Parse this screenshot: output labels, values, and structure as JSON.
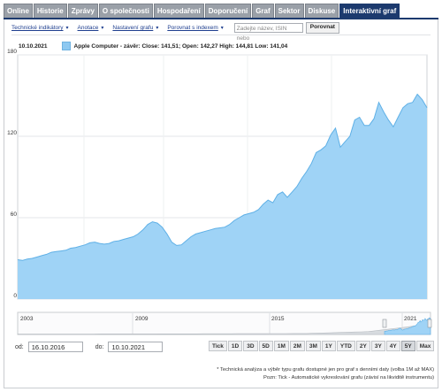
{
  "tabs": [
    "Online",
    "Historie",
    "Zprávy",
    "O společnosti",
    "Hospodaření",
    "Doporučení",
    "Graf",
    "Sektor",
    "Diskuse",
    "Interaktivní graf"
  ],
  "active_tab_index": 9,
  "toolbar": {
    "links": [
      "Technické indikátory",
      "Anotace",
      "Nastavení grafu",
      "Porovnat s indexem"
    ],
    "search_placeholder": "Zadejte název, ISIN nebo",
    "compare_button": "Porovnat"
  },
  "info": {
    "date": "10.10.2021",
    "series_text": "Apple Computer - závěr: Close: 141,51; Open: 142,27 High: 144,81 Low: 141,04"
  },
  "colors": {
    "area_fill": "#9fd3f6",
    "area_line": "#5fb0e6",
    "active_tab": "#1c3a6e",
    "tab": "#9aa0a8"
  },
  "navigator": {
    "year_labels": [
      "2003",
      "2009",
      "2015",
      "2021"
    ]
  },
  "dates": {
    "from_label": "od:",
    "from_value": "16.10.2016",
    "to_label": "do:",
    "to_value": "10.10.2021"
  },
  "range_buttons": [
    "Tick",
    "1D",
    "3D",
    "5D",
    "1M",
    "2M",
    "3M",
    "1Y",
    "YTD",
    "2Y",
    "3Y",
    "4Y",
    "5Y",
    "Max"
  ],
  "selected_range": "5Y",
  "footnotes": [
    "* Technická analýza a výběr typu grafu dostupné jen pro graf s denními daty (volba 1M až MAX)",
    "Pozn: Tick - Automatické vykreslování grafu (závisí na likviditě instrumentu)"
  ],
  "chart_data": {
    "type": "area",
    "series": [
      {
        "name": "Apple Computer",
        "values": [
          29,
          28.5,
          29.5,
          30,
          31,
          32,
          33,
          34.5,
          35,
          35.5,
          36,
          37.5,
          38,
          39,
          40,
          41.5,
          42,
          41,
          40.5,
          41,
          42.5,
          43,
          44,
          45,
          46,
          48,
          51,
          55,
          57,
          56,
          53,
          48,
          42,
          39.5,
          40,
          43,
          46,
          48,
          49,
          50,
          51,
          52,
          52.5,
          53,
          55,
          58,
          60,
          62,
          63,
          64,
          66,
          70,
          73,
          71,
          77,
          79,
          75,
          79,
          83,
          89,
          94,
          100,
          108,
          110,
          113,
          121,
          126,
          112,
          116,
          120,
          132,
          134,
          128,
          128,
          133,
          145,
          138,
          132,
          127,
          134,
          141,
          144,
          145,
          151,
          147,
          141
        ]
      }
    ],
    "x_start": "16.10.2016",
    "x_end": "10.10.2021",
    "yticks": [
      0,
      60,
      120,
      180
    ],
    "ylim": [
      0,
      180
    ],
    "grid": true
  }
}
